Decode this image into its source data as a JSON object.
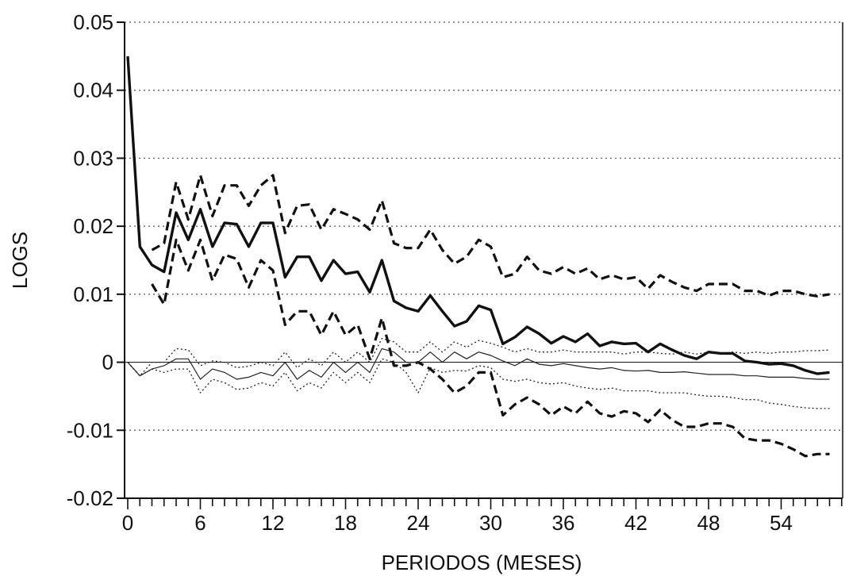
{
  "chart_data": {
    "type": "line",
    "title": "",
    "xlabel": "PERIODOS (MESES)",
    "ylabel": "LOGS",
    "xlim": [
      0,
      59
    ],
    "ylim": [
      -0.02,
      0.05
    ],
    "x_ticks": [
      0,
      6,
      12,
      18,
      24,
      30,
      36,
      42,
      48,
      54
    ],
    "x_tick_labels": [
      "0",
      "6",
      "12",
      "18",
      "24",
      "30",
      "36",
      "42",
      "48",
      "54"
    ],
    "y_ticks": [
      -0.02,
      -0.01,
      0,
      0.01,
      0.02,
      0.03,
      0.04,
      0.05
    ],
    "y_tick_labels": [
      "-0.02",
      "-0.01",
      "0",
      "0.01",
      "0.02",
      "0.03",
      "0.04",
      "0.05"
    ],
    "grid": "horizontal dotted",
    "series": [
      {
        "style": "thick-solid",
        "x": [
          0,
          1,
          2,
          3,
          4,
          5,
          6,
          7,
          8,
          9,
          10,
          11,
          12,
          13,
          14,
          15,
          16,
          17,
          18,
          19,
          20,
          21,
          22,
          23,
          24,
          25,
          26,
          27,
          28,
          29,
          30,
          31,
          32,
          33,
          34,
          35,
          36,
          37,
          38,
          39,
          40,
          41,
          42,
          43,
          44,
          45,
          46,
          47,
          48,
          49,
          50,
          51,
          52,
          53,
          54,
          55,
          56,
          57,
          58
        ],
        "y": [
          0.045,
          0.017,
          0.0143,
          0.0133,
          0.022,
          0.018,
          0.0225,
          0.017,
          0.0205,
          0.0203,
          0.017,
          0.0205,
          0.0205,
          0.0125,
          0.0155,
          0.0155,
          0.012,
          0.015,
          0.013,
          0.0133,
          0.0103,
          0.015,
          0.009,
          0.008,
          0.0075,
          0.0098,
          0.0075,
          0.0053,
          0.006,
          0.0083,
          0.0077,
          0.0027,
          0.0037,
          0.0052,
          0.0042,
          0.0028,
          0.0038,
          0.003,
          0.0042,
          0.0024,
          0.003,
          0.0027,
          0.0028,
          0.0015,
          0.0027,
          0.0018,
          0.001,
          0.0005,
          0.0015,
          0.0013,
          0.0013,
          0.0002,
          0.0,
          -0.0003,
          -0.0002,
          -0.0005,
          -0.0012,
          -0.0017,
          -0.0015
        ]
      },
      {
        "style": "thick-dashed",
        "x": [
          2,
          3,
          4,
          5,
          6,
          7,
          8,
          9,
          10,
          11,
          12,
          13,
          14,
          15,
          16,
          17,
          18,
          19,
          20,
          21,
          22,
          23,
          24,
          25,
          26,
          27,
          28,
          29,
          30,
          31,
          32,
          33,
          34,
          35,
          36,
          37,
          38,
          39,
          40,
          41,
          42,
          43,
          44,
          45,
          46,
          47,
          48,
          49,
          50,
          51,
          52,
          53,
          54,
          55,
          56,
          57,
          58
        ],
        "y": [
          0.0165,
          0.0175,
          0.0265,
          0.021,
          0.0275,
          0.0215,
          0.026,
          0.026,
          0.023,
          0.026,
          0.0275,
          0.019,
          0.023,
          0.0232,
          0.0195,
          0.0225,
          0.0218,
          0.021,
          0.0195,
          0.0238,
          0.0175,
          0.0168,
          0.0168,
          0.0195,
          0.0165,
          0.0145,
          0.0155,
          0.018,
          0.017,
          0.0125,
          0.013,
          0.0155,
          0.0135,
          0.013,
          0.014,
          0.013,
          0.0138,
          0.0122,
          0.0128,
          0.0122,
          0.0125,
          0.0108,
          0.0128,
          0.0118,
          0.011,
          0.0105,
          0.0115,
          0.0115,
          0.0115,
          0.0105,
          0.0105,
          0.0098,
          0.0105,
          0.0105,
          0.01,
          0.0097,
          0.01
        ]
      },
      {
        "style": "thick-dashed",
        "x": [
          2,
          3,
          4,
          5,
          6,
          7,
          8,
          9,
          10,
          11,
          12,
          13,
          14,
          15,
          16,
          17,
          18,
          19,
          20,
          21,
          22,
          23,
          24,
          25,
          26,
          27,
          28,
          29,
          30,
          31,
          32,
          33,
          34,
          35,
          36,
          37,
          38,
          39,
          40,
          41,
          42,
          43,
          44,
          45,
          46,
          47,
          48,
          49,
          50,
          51,
          52,
          53,
          54,
          55,
          56,
          57,
          58
        ],
        "y": [
          0.0115,
          0.0085,
          0.018,
          0.0135,
          0.018,
          0.012,
          0.0158,
          0.0152,
          0.011,
          0.015,
          0.0135,
          0.0055,
          0.0075,
          0.0075,
          0.004,
          0.0075,
          0.004,
          0.0055,
          0.0005,
          0.0065,
          -0.0005,
          -0.0005,
          0.0,
          -0.001,
          -0.0025,
          -0.0045,
          -0.0035,
          -0.0015,
          -0.0015,
          -0.0078,
          -0.0062,
          -0.0052,
          -0.0062,
          -0.0078,
          -0.0065,
          -0.0075,
          -0.0058,
          -0.0075,
          -0.008,
          -0.0072,
          -0.0075,
          -0.0088,
          -0.007,
          -0.0085,
          -0.0095,
          -0.0095,
          -0.009,
          -0.009,
          -0.0095,
          -0.0112,
          -0.0115,
          -0.0115,
          -0.012,
          -0.0128,
          -0.0138,
          -0.0135,
          -0.0135
        ]
      },
      {
        "style": "thin-solid",
        "x": [
          0,
          1,
          2,
          3,
          4,
          5,
          6,
          7,
          8,
          9,
          10,
          11,
          12,
          13,
          14,
          15,
          16,
          17,
          18,
          19,
          20,
          21,
          22,
          23,
          24,
          25,
          26,
          27,
          28,
          29,
          30,
          31,
          32,
          33,
          34,
          35,
          36,
          37,
          38,
          39,
          40,
          41,
          42,
          43,
          44,
          45,
          46,
          47,
          48,
          49,
          50,
          51,
          52,
          53,
          54,
          55,
          56,
          57,
          58
        ],
        "y": [
          0.0,
          -0.002,
          -0.001,
          -0.0005,
          0.0005,
          0.0005,
          -0.0025,
          -0.001,
          -0.0015,
          -0.0025,
          -0.0022,
          -0.0015,
          -0.002,
          0.0,
          -0.0025,
          -0.0012,
          -0.0022,
          0.0,
          -0.0015,
          0.0,
          -0.0015,
          0.002,
          0.0015,
          0.0,
          0.0,
          0.0015,
          0.0,
          0.0015,
          0.0005,
          0.0015,
          0.001,
          0.0002,
          -0.0005,
          0.0005,
          -0.0003,
          -0.0005,
          -0.0002,
          -0.0005,
          -0.0008,
          -0.001,
          -0.0008,
          -0.0012,
          -0.0013,
          -0.0012,
          -0.0015,
          -0.0015,
          -0.0014,
          -0.0016,
          -0.0018,
          -0.0018,
          -0.0018,
          -0.002,
          -0.002,
          -0.0022,
          -0.0022,
          -0.0022,
          -0.0024,
          -0.0025,
          -0.0025
        ]
      },
      {
        "style": "thin-dotted",
        "x": [
          0,
          1,
          2,
          3,
          4,
          5,
          6,
          7,
          8,
          9,
          10,
          11,
          12,
          13,
          14,
          15,
          16,
          17,
          18,
          19,
          20,
          21,
          22,
          23,
          24,
          25,
          26,
          27,
          28,
          29,
          30,
          31,
          32,
          33,
          34,
          35,
          36,
          37,
          38,
          39,
          40,
          41,
          42,
          43,
          44,
          45,
          46,
          47,
          48,
          49,
          50,
          51,
          52,
          53,
          54,
          55,
          56,
          57,
          58
        ],
        "y": [
          0.0,
          -0.002,
          0.0,
          0.0,
          0.002,
          0.0018,
          -0.0005,
          0.0002,
          0.0,
          -0.0008,
          -0.0006,
          0.0,
          -0.0005,
          0.0015,
          -0.0008,
          0.0005,
          -0.0005,
          0.0015,
          0.0,
          0.0015,
          0.0,
          0.0035,
          0.003,
          0.0015,
          0.0015,
          0.003,
          0.0015,
          0.003,
          0.0022,
          0.0032,
          0.0028,
          0.0022,
          0.0015,
          0.002,
          0.0015,
          0.0015,
          0.0018,
          0.0015,
          0.0015,
          0.0015,
          0.0015,
          0.0012,
          0.0015,
          0.0015,
          0.0013,
          0.0012,
          0.0015,
          0.0012,
          0.0015,
          0.0013,
          0.0015,
          0.0013,
          0.0015,
          0.0013,
          0.0015,
          0.0015,
          0.0017,
          0.0017,
          0.0018
        ]
      },
      {
        "style": "thin-dotted",
        "x": [
          0,
          1,
          2,
          3,
          4,
          5,
          6,
          7,
          8,
          9,
          10,
          11,
          12,
          13,
          14,
          15,
          16,
          17,
          18,
          19,
          20,
          21,
          22,
          23,
          24,
          25,
          26,
          27,
          28,
          29,
          30,
          31,
          32,
          33,
          34,
          35,
          36,
          37,
          38,
          39,
          40,
          41,
          42,
          43,
          44,
          45,
          46,
          47,
          48,
          49,
          50,
          51,
          52,
          53,
          54,
          55,
          56,
          57,
          58
        ],
        "y": [
          0.0,
          -0.002,
          -0.001,
          -0.0015,
          -0.001,
          -0.001,
          -0.0045,
          -0.0025,
          -0.003,
          -0.004,
          -0.0038,
          -0.003,
          -0.0035,
          -0.0015,
          -0.0042,
          -0.003,
          -0.0038,
          -0.0015,
          -0.003,
          -0.0015,
          -0.003,
          0.0005,
          0.0,
          -0.0015,
          -0.0045,
          -0.0008,
          -0.0015,
          -0.0012,
          -0.0013,
          -0.0005,
          -0.0008,
          -0.0025,
          -0.0028,
          -0.0025,
          -0.003,
          -0.0032,
          -0.003,
          -0.0035,
          -0.0038,
          -0.004,
          -0.0038,
          -0.0042,
          -0.0042,
          -0.0042,
          -0.0045,
          -0.0045,
          -0.0045,
          -0.0048,
          -0.005,
          -0.005,
          -0.0052,
          -0.0055,
          -0.0055,
          -0.006,
          -0.0062,
          -0.0065,
          -0.0067,
          -0.0068,
          -0.0068
        ]
      }
    ]
  }
}
